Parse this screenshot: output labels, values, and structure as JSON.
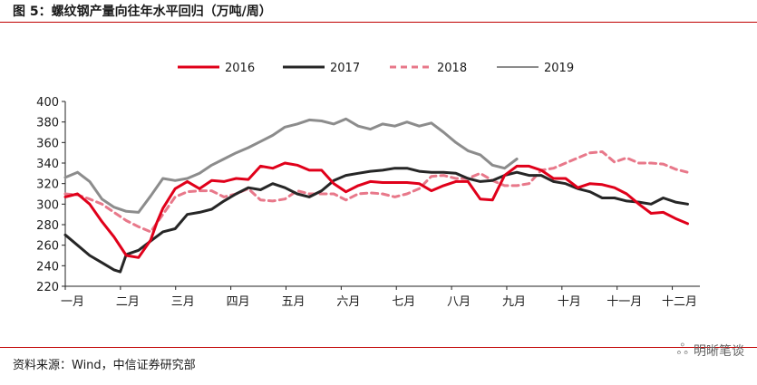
{
  "title": "图 5：螺纹钢产量向往年水平回归（万吨/周）",
  "source": "资料来源：Wind，中信证券研究部",
  "watermark": "明晰笔谈",
  "chart_data": {
    "type": "line",
    "title": "",
    "xlabel": "",
    "ylabel": "",
    "ylim": [
      220,
      400
    ],
    "yticks": [
      220,
      240,
      260,
      280,
      300,
      320,
      340,
      360,
      380,
      400
    ],
    "xticks": [
      "一月",
      "二月",
      "三月",
      "四月",
      "五月",
      "六月",
      "七月",
      "八月",
      "九月",
      "十月",
      "十一月",
      "十二月"
    ],
    "xlim": [
      0,
      52
    ],
    "grid": false,
    "legend_position": "top",
    "series": [
      {
        "name": "2016",
        "color": "#e0001a",
        "style": "solid",
        "width": 3,
        "x": [
          0,
          1,
          2,
          3,
          4,
          5,
          6,
          7,
          7.5,
          8,
          9,
          10,
          11,
          12,
          13,
          14,
          15,
          16,
          17,
          18,
          19,
          20,
          21,
          22,
          23,
          24,
          25,
          26,
          27,
          28,
          29,
          30,
          31,
          32,
          33,
          34,
          35,
          36,
          37,
          38,
          39,
          40,
          41,
          42,
          43,
          44,
          45,
          46,
          47,
          48,
          49,
          50,
          51
        ],
        "y": [
          307,
          310,
          300,
          283,
          268,
          250,
          248,
          265,
          282,
          296,
          315,
          322,
          315,
          323,
          322,
          325,
          324,
          337,
          335,
          340,
          338,
          333,
          333,
          320,
          312,
          318,
          322,
          321,
          321,
          321,
          320,
          313,
          318,
          322,
          322,
          305,
          304,
          328,
          337,
          337,
          333,
          325,
          325,
          316,
          320,
          319,
          316,
          310,
          300,
          291,
          292,
          286,
          281
        ]
      },
      {
        "name": "2017",
        "color": "#262626",
        "style": "solid",
        "width": 3,
        "x": [
          0,
          1,
          2,
          3,
          4,
          4.5,
          5,
          6,
          7,
          8,
          9,
          10,
          11,
          12,
          13,
          14,
          15,
          16,
          17,
          18,
          19,
          20,
          21,
          22,
          23,
          24,
          25,
          26,
          27,
          28,
          29,
          30,
          31,
          32,
          33,
          34,
          35,
          36,
          37,
          38,
          39,
          40,
          41,
          42,
          43,
          44,
          45,
          46,
          47,
          48,
          49,
          50,
          51
        ],
        "y": [
          270,
          260,
          250,
          243,
          236,
          234,
          251,
          255,
          264,
          273,
          276,
          290,
          292,
          295,
          303,
          310,
          316,
          314,
          320,
          316,
          310,
          307,
          313,
          323,
          328,
          330,
          332,
          333,
          335,
          335,
          332,
          331,
          331,
          330,
          325,
          322,
          323,
          328,
          331,
          328,
          328,
          322,
          320,
          315,
          312,
          306,
          306,
          303,
          302,
          300,
          306,
          302,
          300
        ]
      },
      {
        "name": "2018",
        "color": "#e8788a",
        "style": "dashed",
        "width": 3,
        "x": [
          0,
          1,
          2,
          3,
          4,
          5,
          6,
          7,
          8,
          9,
          10,
          11,
          12,
          13,
          14,
          15,
          16,
          17,
          18,
          19,
          20,
          21,
          22,
          23,
          24,
          25,
          26,
          27,
          28,
          29,
          30,
          31,
          32,
          33,
          34,
          35,
          36,
          37,
          38,
          39,
          40,
          41,
          42,
          43,
          44,
          45,
          46,
          47,
          48,
          49,
          50,
          51
        ],
        "y": [
          310,
          309,
          305,
          300,
          292,
          284,
          278,
          273,
          290,
          307,
          312,
          313,
          313,
          307,
          310,
          315,
          304,
          303,
          305,
          313,
          310,
          310,
          310,
          304,
          310,
          311,
          310,
          307,
          310,
          315,
          327,
          328,
          325,
          325,
          330,
          323,
          318,
          318,
          320,
          333,
          335,
          340,
          345,
          350,
          351,
          341,
          345,
          340,
          340,
          339,
          334,
          331
        ]
      },
      {
        "name": "2019",
        "color": "#8c8c8c",
        "style": "solid",
        "width": 3,
        "x": [
          0,
          1,
          2,
          3,
          4,
          5,
          6,
          7,
          8,
          9,
          10,
          11,
          12,
          13,
          14,
          15,
          16,
          17,
          18,
          19,
          20,
          21,
          22,
          23,
          24,
          25,
          26,
          27,
          28,
          29,
          30,
          31,
          32,
          33,
          34,
          35,
          36,
          37
        ],
        "y": [
          326,
          331,
          322,
          305,
          297,
          293,
          292,
          308,
          325,
          323,
          325,
          330,
          338,
          344,
          350,
          355,
          361,
          367,
          375,
          378,
          382,
          381,
          378,
          383,
          376,
          373,
          378,
          376,
          380,
          376,
          379,
          370,
          360,
          352,
          348,
          338,
          335,
          344
        ]
      }
    ]
  }
}
